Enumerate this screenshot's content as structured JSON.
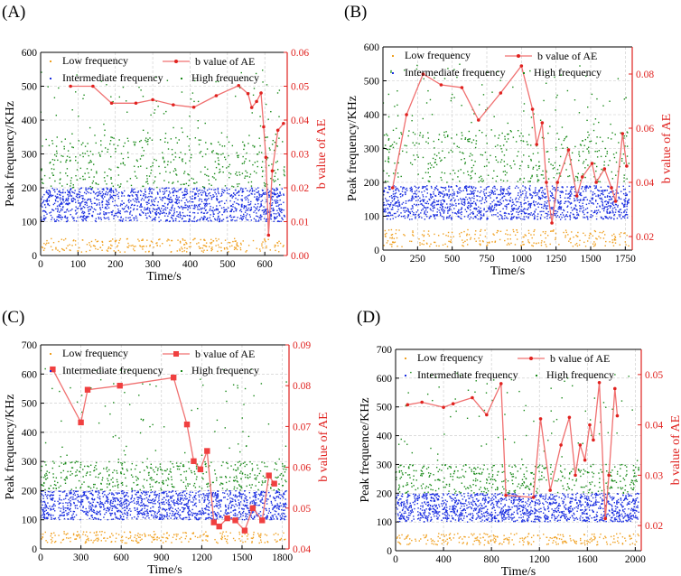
{
  "chart_data": [
    {
      "type": "scatter+line",
      "panel_label": "(A)",
      "xlabel": "Time/s",
      "ylabel_left": "Peak frequency/KHz",
      "ylabel_right": "b value of AE",
      "xlim": [
        0,
        660
      ],
      "ylim_left": [
        0,
        600
      ],
      "ylim_right": [
        0,
        0.06
      ],
      "x_ticks": [
        0,
        100,
        200,
        300,
        400,
        500,
        600
      ],
      "y_ticks_left": [
        0,
        100,
        200,
        300,
        400,
        500,
        600
      ],
      "y_ticks_right": [
        "0.00",
        "0.01",
        "0.02",
        "0.03",
        "0.04",
        "0.05",
        "0.06"
      ],
      "legend": {
        "low": "Low frequency",
        "mid": "Intermediate frequency",
        "high": "High frequency",
        "b": "b value of AE"
      },
      "bands": {
        "low": [
          10,
          50
        ],
        "mid": [
          100,
          200
        ],
        "high": [
          200,
          350
        ]
      },
      "b_marker": "dot",
      "b_values": {
        "x": [
          80,
          140,
          190,
          255,
          300,
          355,
          410,
          470,
          530,
          555,
          565,
          578,
          590,
          597,
          603,
          610,
          620,
          635,
          650
        ],
        "y": [
          0.05,
          0.05,
          0.045,
          0.045,
          0.046,
          0.0445,
          0.0438,
          0.0472,
          0.0502,
          0.0478,
          0.0437,
          0.0455,
          0.048,
          0.038,
          0.029,
          0.006,
          0.025,
          0.037,
          0.039
        ]
      }
    },
    {
      "type": "scatter+line",
      "panel_label": "(B)",
      "xlabel": "Time/s",
      "ylabel_left": "Peak frequency/KHz",
      "ylabel_right": "b value of AE",
      "xlim": [
        0,
        1800
      ],
      "ylim_left": [
        0,
        600
      ],
      "ylim_right": [
        0.015,
        0.09
      ],
      "x_ticks": [
        0,
        250,
        500,
        750,
        1000,
        1250,
        1500,
        1750
      ],
      "y_ticks_left": [
        0,
        100,
        200,
        300,
        400,
        500,
        600
      ],
      "y_ticks_right": [
        "0.02",
        "0.04",
        "0.06",
        "0.08"
      ],
      "y_ticks_right_values": [
        0.02,
        0.04,
        0.06,
        0.08
      ],
      "legend": {
        "low": "Low frequency",
        "mid": "Intermediate frequency",
        "high": "High frequency",
        "b": "b value of AE"
      },
      "bands": {
        "low": [
          10,
          60
        ],
        "mid": [
          90,
          190
        ],
        "high": [
          200,
          350
        ]
      },
      "b_marker": "dot",
      "b_values": {
        "x": [
          70,
          170,
          290,
          420,
          570,
          690,
          850,
          1000,
          1080,
          1110,
          1150,
          1180,
          1220,
          1260,
          1340,
          1400,
          1440,
          1510,
          1540,
          1600,
          1650,
          1680,
          1730,
          1760
        ],
        "y": [
          0.038,
          0.065,
          0.08,
          0.076,
          0.075,
          0.063,
          0.073,
          0.083,
          0.067,
          0.054,
          0.062,
          0.04,
          0.025,
          0.04,
          0.052,
          0.035,
          0.042,
          0.047,
          0.04,
          0.045,
          0.038,
          0.033,
          0.058,
          0.046
        ]
      }
    },
    {
      "type": "scatter+line",
      "panel_label": "(C)",
      "xlabel": "Time/s",
      "ylabel_left": "Peak frequency/KHz",
      "ylabel_right": "b value of AE",
      "xlim": [
        0,
        1850
      ],
      "ylim_left": [
        0,
        700
      ],
      "ylim_right": [
        0.04,
        0.09
      ],
      "x_ticks": [
        0,
        300,
        600,
        900,
        1200,
        1500,
        1800
      ],
      "y_ticks_left": [
        0,
        100,
        200,
        300,
        400,
        500,
        600,
        700
      ],
      "y_ticks_right": [
        "0.04",
        "0.05",
        "0.06",
        "0.07",
        "0.08",
        "0.09"
      ],
      "y_ticks_right_values": [
        0.04,
        0.05,
        0.06,
        0.07,
        0.08,
        0.09
      ],
      "legend": {
        "low": "Low frequency",
        "mid": "Intermediate frequency",
        "high": "High frequency",
        "b": "b value of AE"
      },
      "bands": {
        "low": [
          20,
          60
        ],
        "mid": [
          100,
          200
        ],
        "high": [
          200,
          300
        ]
      },
      "b_marker": "square",
      "b_values": {
        "x": [
          90,
          300,
          350,
          590,
          990,
          1090,
          1140,
          1190,
          1240,
          1290,
          1330,
          1390,
          1450,
          1520,
          1580,
          1650,
          1700,
          1740
        ],
        "y": [
          0.084,
          0.071,
          0.079,
          0.08,
          0.082,
          0.0705,
          0.0615,
          0.0595,
          0.064,
          0.0465,
          0.0455,
          0.0475,
          0.047,
          0.0445,
          0.05,
          0.047,
          0.058,
          0.056
        ]
      }
    },
    {
      "type": "scatter+line",
      "panel_label": "(D)",
      "xlabel": "Time/s",
      "ylabel_left": "Peak frequence/KHz",
      "ylabel_right": "b value of AE",
      "xlim": [
        0,
        2050
      ],
      "ylim_left": [
        0,
        700
      ],
      "ylim_right": [
        0.015,
        0.055
      ],
      "x_ticks": [
        0,
        400,
        800,
        1200,
        1600,
        2000
      ],
      "y_ticks_left": [
        0,
        100,
        200,
        300,
        400,
        500,
        600,
        700
      ],
      "y_ticks_right": [
        "0.02",
        "0.03",
        "0.04",
        "0.05"
      ],
      "y_ticks_right_values": [
        0.02,
        0.03,
        0.04,
        0.05
      ],
      "legend": {
        "low": "Low frequency",
        "mid": "Intermediate frequency",
        "high": "High frequency",
        "b": "b value of AE"
      },
      "bands": {
        "low": [
          20,
          60
        ],
        "mid": [
          100,
          200
        ],
        "high": [
          200,
          300
        ]
      },
      "b_marker": "dot",
      "b_values": {
        "x": [
          100,
          220,
          400,
          480,
          640,
          760,
          880,
          920,
          1150,
          1210,
          1290,
          1380,
          1450,
          1500,
          1540,
          1580,
          1620,
          1650,
          1700,
          1750,
          1780,
          1830,
          1850
        ],
        "y": [
          0.044,
          0.0445,
          0.0435,
          0.0442,
          0.0454,
          0.042,
          0.0482,
          0.026,
          0.0256,
          0.0412,
          0.027,
          0.036,
          0.0415,
          0.03,
          0.036,
          0.033,
          0.04,
          0.037,
          0.0484,
          0.0214,
          0.03,
          0.0472,
          0.0418
        ]
      }
    }
  ],
  "colors": {
    "low": "#f0a020",
    "mid": "#1a2ee0",
    "high": "#1a8a1a",
    "b_line": "#f07070",
    "b_marker_dot": "#e0221f",
    "b_marker_square": "#f04040",
    "right_axis": "#e0221f"
  }
}
